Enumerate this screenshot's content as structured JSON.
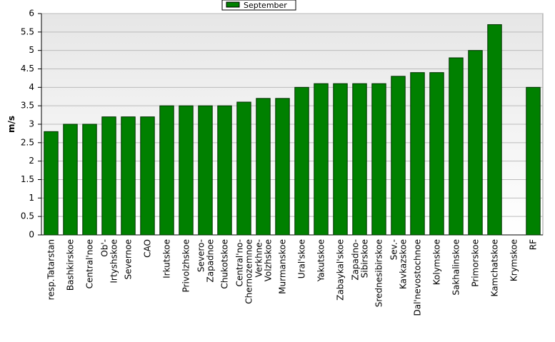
{
  "chart_data": {
    "type": "bar",
    "y_label": "m/s",
    "categories": [
      "resp.Tatarstan",
      "Bashkirskoe",
      "Central'noe",
      "Ob'-\nIrtyshskoe",
      "Severnoe",
      "CAO",
      "Irkutskoe",
      "Privolzhskoe",
      "Severo-\nZapadnoe",
      "Chukotskoe",
      "Central'no-\nChernozemnoe",
      "Verkhne-\nVolzhskoe",
      "Murmanskoe",
      "Ural'skoe",
      "Yakutskoe",
      "Zabaykal'skoe",
      "Zapadno-\nSibirskoe",
      "Srednesibirskoe",
      "Sev.-\nKavkazskoe",
      "Dal'nevostochnoe",
      "Kolymskoe",
      "Sakhalinskoe",
      "Primorskoe",
      "Kamchatskoe",
      "Krymskoe",
      "RF"
    ],
    "series": [
      {
        "name": "September",
        "color": "#008000",
        "values": [
          2.8,
          3.0,
          3.0,
          3.2,
          3.2,
          3.2,
          3.5,
          3.5,
          3.5,
          3.5,
          3.6,
          3.7,
          3.7,
          4.0,
          4.1,
          4.1,
          4.1,
          4.1,
          4.3,
          4.4,
          4.4,
          4.8,
          5.0,
          5.7,
          null,
          4.0
        ]
      }
    ],
    "ylim": [
      0,
      6
    ],
    "yticks": [
      0,
      0.5,
      1,
      1.5,
      2,
      2.5,
      3,
      3.5,
      4,
      4.5,
      5,
      5.5,
      6
    ],
    "grid": true,
    "legend": "top"
  }
}
